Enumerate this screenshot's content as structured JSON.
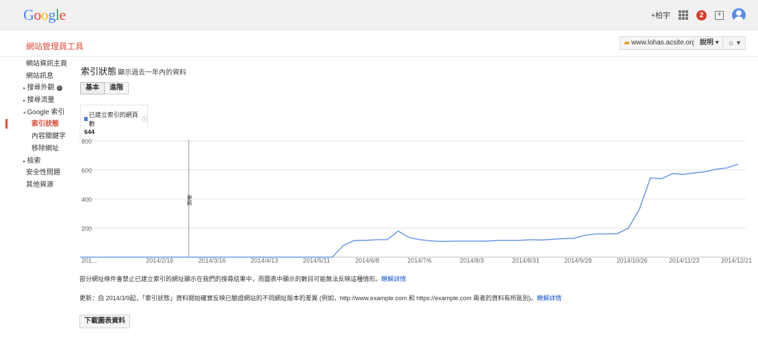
{
  "header": {
    "logo_letters": [
      {
        "ch": "G",
        "color": "#4285f4"
      },
      {
        "ch": "o",
        "color": "#ea4335"
      },
      {
        "ch": "o",
        "color": "#fbbc05"
      },
      {
        "ch": "g",
        "color": "#4285f4"
      },
      {
        "ch": "l",
        "color": "#34a853"
      },
      {
        "ch": "e",
        "color": "#ea4335"
      }
    ],
    "plus_user": "+柏宇",
    "notification_count": "2"
  },
  "subheader": {
    "product_name": "網站管理員工具",
    "site": "www.lohas.acsite.org",
    "help_label": "說明",
    "gear_label": "☼"
  },
  "sidebar": {
    "items": [
      {
        "label": "網站資訊主頁",
        "level": 0
      },
      {
        "label": "網站訊息",
        "level": 0
      },
      {
        "label": "搜尋外觀",
        "level": 0,
        "arrow": "▸",
        "info": true
      },
      {
        "label": "搜尋流量",
        "level": 0,
        "arrow": "▸"
      },
      {
        "label": "Google 索引",
        "level": 0,
        "arrow": "▾"
      },
      {
        "label": "索引狀態",
        "level": 1,
        "active": true
      },
      {
        "label": "內容關鍵字",
        "level": 1
      },
      {
        "label": "移除網址",
        "level": 1
      },
      {
        "label": "檢索",
        "level": 0,
        "arrow": "▸"
      },
      {
        "label": "安全性問題",
        "level": 0
      },
      {
        "label": "其他資源",
        "level": 0
      }
    ]
  },
  "main": {
    "title": "索引狀態",
    "subtitle": "顯示過去一年內的資料",
    "tabs": [
      {
        "label": "基本",
        "selected": true
      },
      {
        "label": "進階",
        "selected": false
      }
    ],
    "legend": {
      "label": "已建立索引的網頁數",
      "value": "644"
    },
    "notes": [
      {
        "text": "部分網址條件會禁止已建立索引的網址顯示在我們的搜尋結果中，而圖表中顯示的數目可能無法反映這種情形。",
        "link": "瞭解詳情"
      },
      {
        "text": "更新：自 2014/3/9起，「索引狀態」資料開始確實反映已驗證網站的不同網址版本的差異 (例如，http://www.example.com 和 https://example.com 兩者的資料有所區別)。",
        "link": "瞭解詳情"
      }
    ],
    "download_label": "下載圖表資料"
  },
  "chart_data": {
    "type": "line",
    "ylim": [
      0,
      800
    ],
    "y_ticks": [
      200,
      400,
      600,
      800
    ],
    "x_tick_labels": [
      "201...",
      "2014/2/16",
      "2014/3/16",
      "2014/4/13",
      "2014/5/11",
      "2014/6/8",
      "2014/7/6",
      "2014/8/3",
      "2014/8/31",
      "2014/9/28",
      "2014/10/26",
      "2014/11/23",
      "2014/12/21"
    ],
    "annotation": {
      "label": "更新",
      "x_index": 2
    },
    "line_color": "#6f9ce6",
    "series": [
      {
        "values": [
          0,
          0,
          0,
          0,
          0,
          0,
          0,
          0,
          0,
          0,
          0,
          0,
          0,
          0,
          0,
          0,
          0,
          0,
          0,
          0,
          0,
          0,
          0,
          0,
          80,
          115,
          115,
          120,
          120,
          180,
          135,
          120,
          112,
          108,
          110,
          110,
          110,
          110,
          115,
          115,
          115,
          120,
          118,
          122,
          128,
          130,
          150,
          160,
          160,
          162,
          200,
          330,
          545,
          540,
          575,
          570,
          580,
          588,
          605,
          614,
          640
        ]
      }
    ]
  }
}
